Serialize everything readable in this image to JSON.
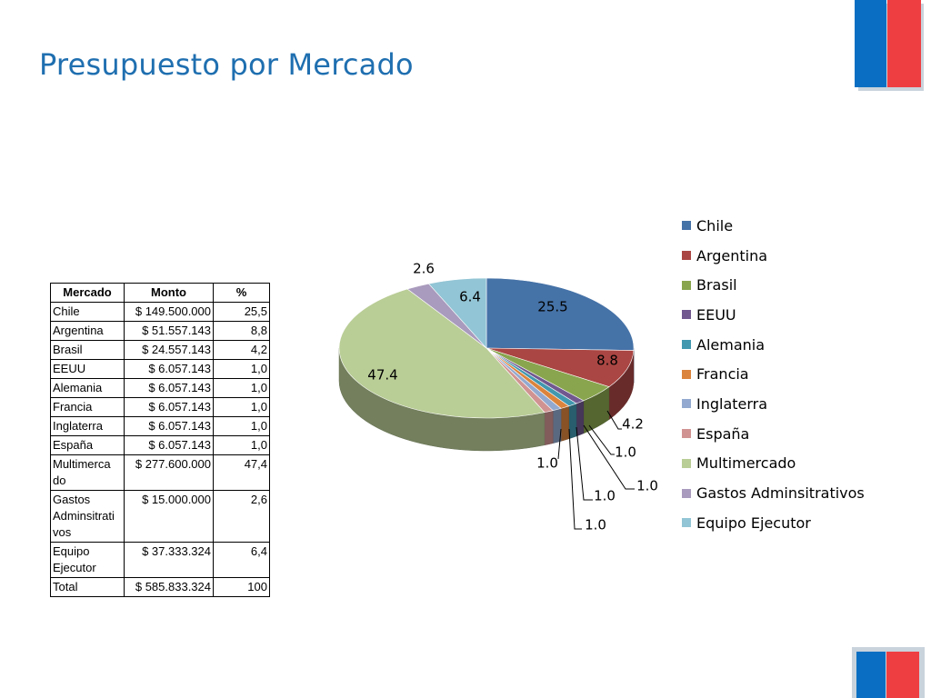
{
  "slide": {
    "title": "Presupuesto por Mercado",
    "title_color": "#1f6fb0",
    "flag_colors": {
      "blue": "#0a6fc2",
      "red": "#ef3e42"
    }
  },
  "table": {
    "headers": [
      "Mercado",
      "Monto",
      "%"
    ],
    "rows": [
      [
        "Chile",
        "$ 149.500.000",
        "25,5"
      ],
      [
        "Argentina",
        "$ 51.557.143",
        "8,8"
      ],
      [
        "Brasil",
        "$ 24.557.143",
        "4,2"
      ],
      [
        "EEUU",
        "$ 6.057.143",
        "1,0"
      ],
      [
        "Alemania",
        "$ 6.057.143",
        "1,0"
      ],
      [
        "Francia",
        "$ 6.057.143",
        "1,0"
      ],
      [
        "Inglaterra",
        "$ 6.057.143",
        "1,0"
      ],
      [
        "España",
        "$ 6.057.143",
        "1,0"
      ],
      [
        "Multimercado",
        "$ 277.600.000",
        "47,4"
      ],
      [
        "Gastos Adminsitrativos",
        "$ 15.000.000",
        "2,6"
      ],
      [
        "Equipo Ejecutor",
        "$ 37.333.324",
        "6,4"
      ],
      [
        "Total",
        "$ 585.833.324",
        "100"
      ]
    ]
  },
  "chart_data": {
    "type": "pie",
    "style": "3d",
    "title": "",
    "legend_placement": "right",
    "categories": [
      "Chile",
      "Argentina",
      "Brasil",
      "EEUU",
      "Alemania",
      "Francia",
      "Inglaterra",
      "España",
      "Multimercado",
      "Gastos Adminsitrativos",
      "Equipo Ejecutor"
    ],
    "values": [
      25.5,
      8.8,
      4.2,
      1.0,
      1.0,
      1.0,
      1.0,
      1.0,
      47.4,
      2.6,
      6.4
    ],
    "data_labels": [
      "25.5",
      "8.8",
      "4.2",
      "1.0",
      "1.0",
      "1.0",
      "1.0",
      "1.0",
      "47.4",
      "2.6",
      "6.4"
    ],
    "colors": [
      "#4572a7",
      "#aa4643",
      "#89a54e",
      "#71588f",
      "#4198af",
      "#db843d",
      "#93a9cf",
      "#d19392",
      "#b9cd96",
      "#a99bbd",
      "#92c5d5"
    ]
  }
}
